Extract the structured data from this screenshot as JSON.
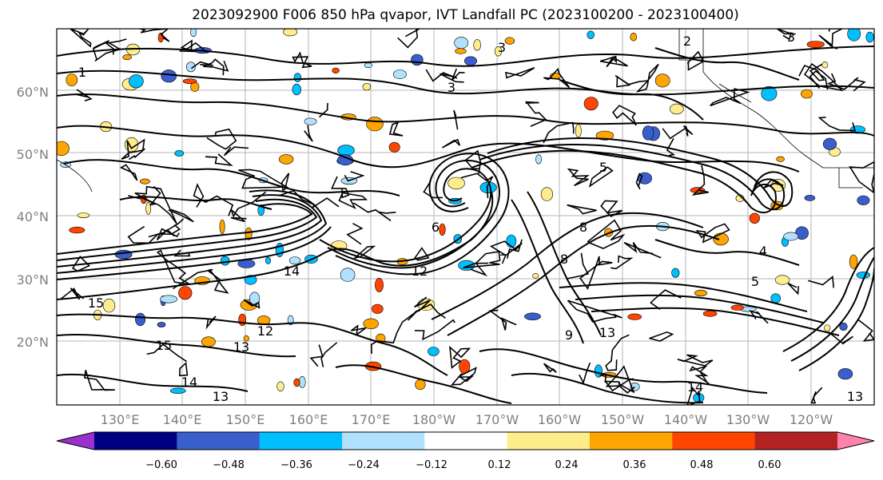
{
  "title": "2023092900 F006 850 hPa qvapor, IVT Landfall PC (2023100200 - 2023100400)",
  "lat_labels": [
    "60°N",
    "50°N",
    "40°N",
    "30°N",
    "20°N"
  ],
  "lon_labels": [
    "130°E",
    "140°E",
    "150°E",
    "160°E",
    "170°E",
    "180°W",
    "170°W",
    "160°W",
    "150°W",
    "140°W",
    "130°W",
    "120°W"
  ],
  "contour_labels": [
    "1",
    "3",
    "3",
    "2",
    "3",
    "5",
    "12",
    "14",
    "15",
    "15",
    "13",
    "14",
    "13",
    "12",
    "7",
    "8",
    "9",
    "13",
    "14",
    "13",
    "6",
    "4",
    "8",
    "5"
  ],
  "colorbar": {
    "colors": [
      "#9932cc",
      "#000080",
      "#3a5fcd",
      "#00bfff",
      "#b0e2ff",
      "#ffffff",
      "#ffec8b",
      "#ffa500",
      "#ff4500",
      "#b22222",
      "#ff82ab"
    ],
    "tick_labels": [
      "−0.60",
      "−0.48",
      "−0.36",
      "−0.24",
      "−0.12",
      "0.12",
      "0.24",
      "0.36",
      "0.48",
      "0.60"
    ]
  }
}
